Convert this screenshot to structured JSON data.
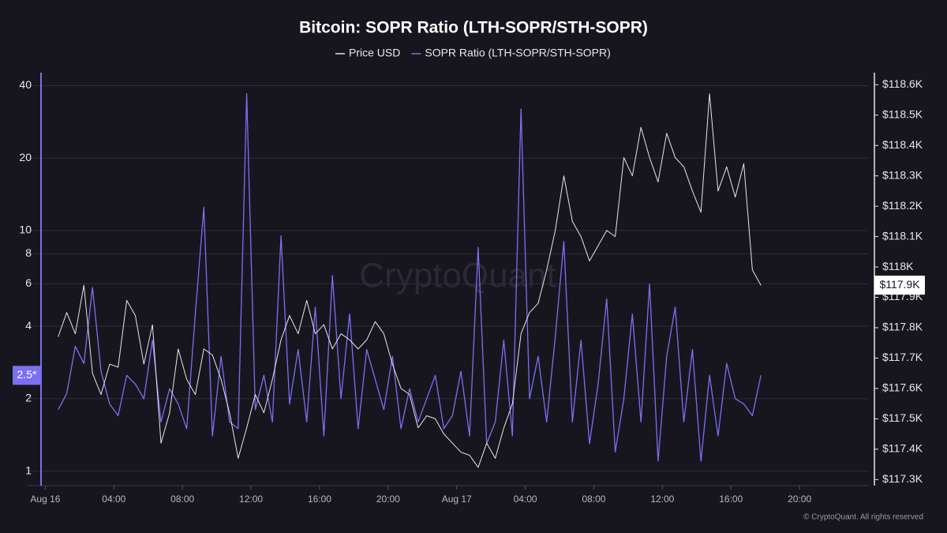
{
  "chart_data": {
    "type": "line",
    "title": "Bitcoin: SOPR Ratio (LTH-SOPR/STH-SOPR)",
    "watermark": "CryptoQuant",
    "footer": "© CryptoQuant. All rights reserved",
    "grid": true,
    "y_log": true,
    "xlim": [
      -0.25,
      48
    ],
    "xticks": [
      {
        "value": 0,
        "label": "Aug 16"
      },
      {
        "value": 4,
        "label": "04:00"
      },
      {
        "value": 8,
        "label": "08:00"
      },
      {
        "value": 12,
        "label": "12:00"
      },
      {
        "value": 16,
        "label": "16:00"
      },
      {
        "value": 20,
        "label": "20:00"
      },
      {
        "value": 24,
        "label": "Aug 17"
      },
      {
        "value": 28,
        "label": "04:00"
      },
      {
        "value": 32,
        "label": "08:00"
      },
      {
        "value": 36,
        "label": "12:00"
      },
      {
        "value": 40,
        "label": "16:00"
      },
      {
        "value": 44,
        "label": "20:00"
      }
    ],
    "ylim": [
      0.87,
      46
    ],
    "yticks": [
      1,
      2,
      4,
      6,
      8,
      10,
      20,
      40
    ],
    "y2lim": [
      117280,
      118645
    ],
    "y2ticks": [
      {
        "value": 117300,
        "label": "$117.3K"
      },
      {
        "value": 117400,
        "label": "$117.4K"
      },
      {
        "value": 117500,
        "label": "$117.5K"
      },
      {
        "value": 117600,
        "label": "$117.6K"
      },
      {
        "value": 117700,
        "label": "$117.7K"
      },
      {
        "value": 117800,
        "label": "$117.8K"
      },
      {
        "value": 117900,
        "label": "$117.9K"
      },
      {
        "value": 118000,
        "label": "$118K"
      },
      {
        "value": 118100,
        "label": "$118.1K"
      },
      {
        "value": 118200,
        "label": "$118.2K"
      },
      {
        "value": 118300,
        "label": "$118.3K"
      },
      {
        "value": 118400,
        "label": "$118.4K"
      },
      {
        "value": 118500,
        "label": "$118.5K"
      },
      {
        "value": 118600,
        "label": "$118.6K"
      }
    ],
    "x": [
      0.75,
      1.25,
      1.75,
      2.25,
      2.75,
      3.25,
      3.75,
      4.25,
      4.75,
      5.25,
      5.75,
      6.25,
      6.75,
      7.25,
      7.75,
      8.25,
      8.75,
      9.25,
      9.75,
      10.25,
      10.75,
      11.25,
      11.75,
      12.25,
      12.75,
      13.25,
      13.75,
      14.25,
      14.75,
      15.25,
      15.75,
      16.25,
      16.75,
      17.25,
      17.75,
      18.25,
      18.75,
      19.25,
      19.75,
      20.25,
      20.75,
      21.25,
      21.75,
      22.25,
      22.75,
      23.25,
      23.75,
      24.25,
      24.75,
      25.25,
      25.75,
      26.25,
      26.75,
      27.25,
      27.75,
      28.25,
      28.75,
      29.25,
      29.75,
      30.25,
      30.75,
      31.25,
      31.75,
      32.25,
      32.75,
      33.25,
      33.75,
      34.25,
      34.75,
      35.25,
      35.75,
      36.25,
      36.75,
      37.25,
      37.75,
      38.25,
      38.75,
      39.25,
      39.75,
      40.25,
      40.75,
      41.25,
      41.75
    ],
    "series": [
      {
        "name": "Price USD",
        "color": "#e6e6ea",
        "axis": "y2",
        "last_value_label": "$117.9K",
        "values": [
          117770,
          117850,
          117780,
          117940,
          117650,
          117580,
          117680,
          117670,
          117890,
          117840,
          117680,
          117810,
          117420,
          117520,
          117730,
          117630,
          117580,
          117730,
          117710,
          117630,
          117520,
          117370,
          117470,
          117580,
          117520,
          117630,
          117760,
          117840,
          117780,
          117890,
          117780,
          117810,
          117730,
          117780,
          117760,
          117730,
          117760,
          117820,
          117780,
          117680,
          117600,
          117580,
          117470,
          117510,
          117500,
          117450,
          117420,
          117390,
          117380,
          117340,
          117420,
          117370,
          117470,
          117550,
          117780,
          117850,
          117880,
          117990,
          118120,
          118300,
          118150,
          118100,
          118020,
          118070,
          118120,
          118100,
          118360,
          118300,
          118460,
          118360,
          118280,
          118440,
          118360,
          118330,
          118250,
          118180,
          118570,
          118250,
          118330,
          118230,
          118340,
          117990,
          117940
        ]
      },
      {
        "name": "SOPR Ratio (LTH-SOPR/STH-SOPR)",
        "color": "#7b70f0",
        "axis": "y",
        "last_value_label": "2.5*",
        "values": [
          1.8,
          2.1,
          3.3,
          2.8,
          5.8,
          2.6,
          1.9,
          1.7,
          2.5,
          2.3,
          2.0,
          3.5,
          1.6,
          2.2,
          1.9,
          1.5,
          4.5,
          12.5,
          1.4,
          3.0,
          1.6,
          1.5,
          37.0,
          1.8,
          2.5,
          1.6,
          9.5,
          1.9,
          3.2,
          1.6,
          4.8,
          1.4,
          6.5,
          2.0,
          4.5,
          1.5,
          3.2,
          2.4,
          1.8,
          3.0,
          1.5,
          2.2,
          1.6,
          2.0,
          2.5,
          1.5,
          1.7,
          2.6,
          1.4,
          8.5,
          1.3,
          1.6,
          3.5,
          1.4,
          32.0,
          2.0,
          3.0,
          1.6,
          3.6,
          9.0,
          1.6,
          3.5,
          1.3,
          2.3,
          5.2,
          1.2,
          2.0,
          4.5,
          1.6,
          6.0,
          1.1,
          3.0,
          4.8,
          1.6,
          3.2,
          1.1,
          2.5,
          1.4,
          2.8,
          2.0,
          1.9,
          1.7,
          2.5
        ]
      }
    ]
  }
}
